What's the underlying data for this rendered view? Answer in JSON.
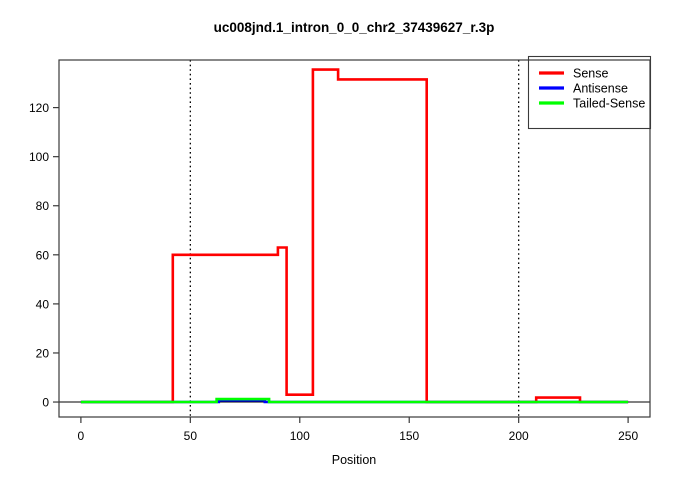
{
  "chart_data": {
    "type": "line",
    "title": "uc008jnd.1_intron_0_0_chr2_37439627_r.3p",
    "xlabel": "Position",
    "ylabel": "",
    "xlim": [
      -10,
      260
    ],
    "ylim": [
      -6.1,
      139.4
    ],
    "x_ticks": [
      0,
      50,
      100,
      150,
      200,
      250
    ],
    "y_ticks": [
      0,
      20,
      40,
      60,
      80,
      100,
      120
    ],
    "grid": false,
    "legend_position": "top-right",
    "baseline": {
      "y": 0,
      "color": "#000000"
    },
    "vlines": [
      {
        "x": 50,
        "style": "dotted",
        "color": "#000000"
      },
      {
        "x": 200,
        "style": "dotted",
        "color": "#000000"
      }
    ],
    "series": [
      {
        "name": "Sense",
        "color": "#ff0000",
        "points": [
          [
            0,
            0
          ],
          [
            42,
            0
          ],
          [
            42,
            60
          ],
          [
            90,
            60
          ],
          [
            90,
            63
          ],
          [
            94,
            63
          ],
          [
            94,
            3
          ],
          [
            106,
            3
          ],
          [
            106,
            135.5
          ],
          [
            117.5,
            135.5
          ],
          [
            117.5,
            131.5
          ],
          [
            158,
            131.5
          ],
          [
            158,
            0
          ],
          [
            208,
            0
          ],
          [
            208,
            1.8
          ],
          [
            228,
            1.8
          ],
          [
            228,
            0
          ],
          [
            250,
            0
          ]
        ]
      },
      {
        "name": "Antisense",
        "color": "#0000ff",
        "points": [
          [
            0,
            0
          ],
          [
            63,
            0
          ],
          [
            63,
            0.7
          ],
          [
            84,
            0.7
          ],
          [
            84,
            0
          ],
          [
            250,
            0
          ]
        ]
      },
      {
        "name": "Tailed-Sense",
        "color": "#00ff00",
        "points": [
          [
            0,
            0
          ],
          [
            62,
            0
          ],
          [
            62,
            1.2
          ],
          [
            86,
            1.2
          ],
          [
            86,
            0
          ],
          [
            250,
            0
          ]
        ]
      }
    ]
  }
}
